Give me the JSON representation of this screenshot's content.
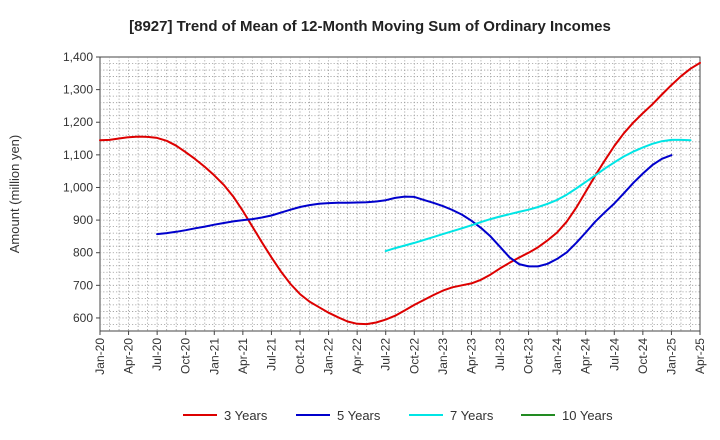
{
  "chart_data": {
    "type": "line",
    "title": "[8927]  Trend of Mean of 12-Month Moving Sum of Ordinary Incomes",
    "ylabel": "Amount (million yen)",
    "xlabel": "",
    "ylim": [
      560,
      1400
    ],
    "ytick_values": [
      600,
      700,
      800,
      900,
      1000,
      1100,
      1200,
      1300,
      1400
    ],
    "ytick_labels": [
      "600",
      "700",
      "800",
      "900",
      "1,000",
      "1,100",
      "1,200",
      "1,300",
      "1,400"
    ],
    "x_start": "Jan-20",
    "x_tick_labels": [
      "Jan-20",
      "Apr-20",
      "Jul-20",
      "Oct-20",
      "Jan-21",
      "Apr-21",
      "Jul-21",
      "Oct-21",
      "Jan-22",
      "Apr-22",
      "Jul-22",
      "Oct-22",
      "Jan-23",
      "Apr-23",
      "Jul-23",
      "Oct-23",
      "Jan-24",
      "Apr-24",
      "Jul-24",
      "Oct-24",
      "Jan-25",
      "Apr-25"
    ],
    "grid": true,
    "legend_position": "bottom",
    "series": [
      {
        "name": "3 Years",
        "color": "#dd0000",
        "start_month": 0,
        "values": [
          1145,
          1146,
          1150,
          1154,
          1156,
          1155,
          1152,
          1143,
          1128,
          1108,
          1087,
          1063,
          1037,
          1008,
          972,
          928,
          880,
          832,
          786,
          742,
          704,
          673,
          650,
          633,
          616,
          602,
          589,
          582,
          581,
          586,
          595,
          607,
          623,
          640,
          655,
          670,
          684,
          694,
          700,
          706,
          717,
          733,
          752,
          769,
          785,
          800,
          817,
          838,
          862,
          895,
          938,
          987,
          1036,
          1083,
          1127,
          1166,
          1199,
          1228,
          1255,
          1285,
          1314,
          1341,
          1364,
          1382
        ]
      },
      {
        "name": "5 Years",
        "color": "#0000cc",
        "start_month": 6,
        "values": [
          857,
          860,
          864,
          869,
          875,
          880,
          886,
          891,
          896,
          900,
          903,
          908,
          914,
          923,
          932,
          940,
          946,
          950,
          952,
          953,
          953,
          954,
          955,
          957,
          961,
          968,
          972,
          971,
          962,
          953,
          943,
          931,
          917,
          898,
          876,
          850,
          818,
          786,
          765,
          758,
          758,
          766,
          781,
          801,
          830,
          862,
          895,
          924,
          951,
          982,
          1014,
          1043,
          1069,
          1088,
          1099
        ]
      },
      {
        "name": "7 Years",
        "color": "#00e5e5",
        "start_month": 30,
        "values": [
          805,
          814,
          822,
          830,
          839,
          848,
          857,
          866,
          875,
          884,
          894,
          903,
          911,
          918,
          925,
          932,
          940,
          950,
          962,
          978,
          997,
          1017,
          1037,
          1058,
          1077,
          1095,
          1110,
          1123,
          1134,
          1142,
          1146,
          1146,
          1145
        ]
      },
      {
        "name": "10 Years",
        "color": "#228b22",
        "start_month": 0,
        "values": []
      }
    ]
  }
}
